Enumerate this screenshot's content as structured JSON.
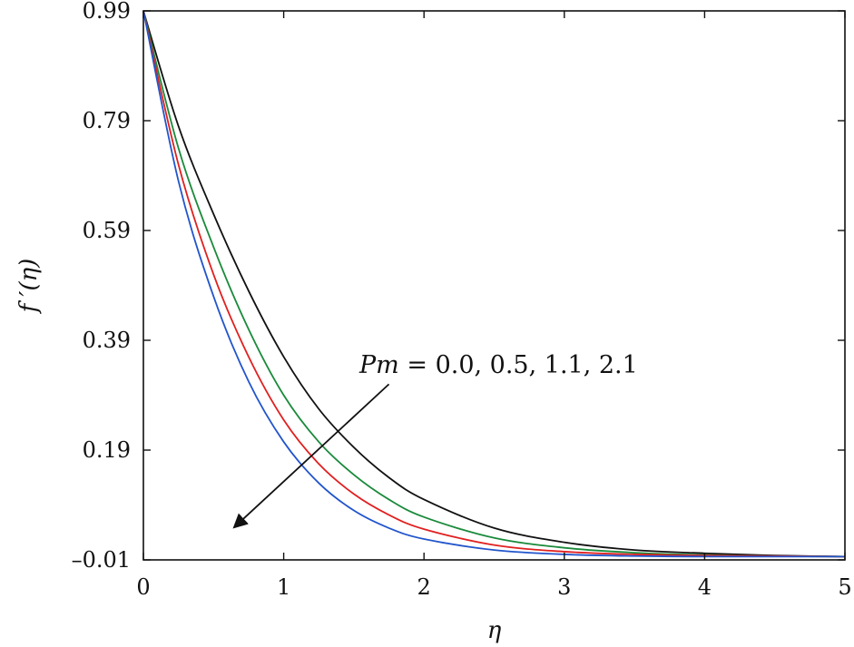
{
  "chart_data": {
    "type": "line",
    "title": "",
    "xlabel": "η",
    "ylabel": "f ′(η)",
    "xlim": [
      0,
      5
    ],
    "ylim": [
      -0.01,
      0.99
    ],
    "xticks": [
      "0",
      "1",
      "2",
      "3",
      "4",
      "5"
    ],
    "yticks": [
      "–0.01",
      "0.19",
      "0.39",
      "0.59",
      "0.79",
      "0.99"
    ],
    "grid": false,
    "legend": null,
    "annotation": {
      "text_prefix": "Pm",
      "text_suffix": " = 0.0, 0.5, 1.1, 2.1",
      "arrow_from": [
        1.75,
        0.31
      ],
      "arrow_to": [
        0.65,
        0.05
      ]
    },
    "x": [
      0,
      0.25,
      0.5,
      0.75,
      1,
      1.25,
      1.5,
      1.75,
      2,
      2.5,
      3,
      3.5,
      4,
      4.5,
      5
    ],
    "series": [
      {
        "color": "#111111",
        "values": [
          0.99,
          0.78,
          0.62,
          0.48,
          0.36,
          0.265,
          0.195,
          0.14,
          0.1,
          0.048,
          0.022,
          0.008,
          0.002,
          -0.002,
          -0.004
        ]
      },
      {
        "color": "#1a8a3a",
        "values": [
          0.99,
          0.74,
          0.56,
          0.41,
          0.29,
          0.205,
          0.145,
          0.1,
          0.068,
          0.03,
          0.012,
          0.003,
          -0.001,
          -0.003,
          -0.004
        ]
      },
      {
        "color": "#e02020",
        "values": [
          0.99,
          0.71,
          0.51,
          0.36,
          0.245,
          0.165,
          0.11,
          0.072,
          0.046,
          0.017,
          0.005,
          0.0,
          -0.002,
          -0.003,
          -0.004
        ]
      },
      {
        "color": "#2255cc",
        "values": [
          0.99,
          0.68,
          0.47,
          0.315,
          0.205,
          0.13,
          0.08,
          0.048,
          0.028,
          0.008,
          0.0,
          -0.003,
          -0.004,
          -0.004,
          -0.004
        ]
      }
    ]
  }
}
